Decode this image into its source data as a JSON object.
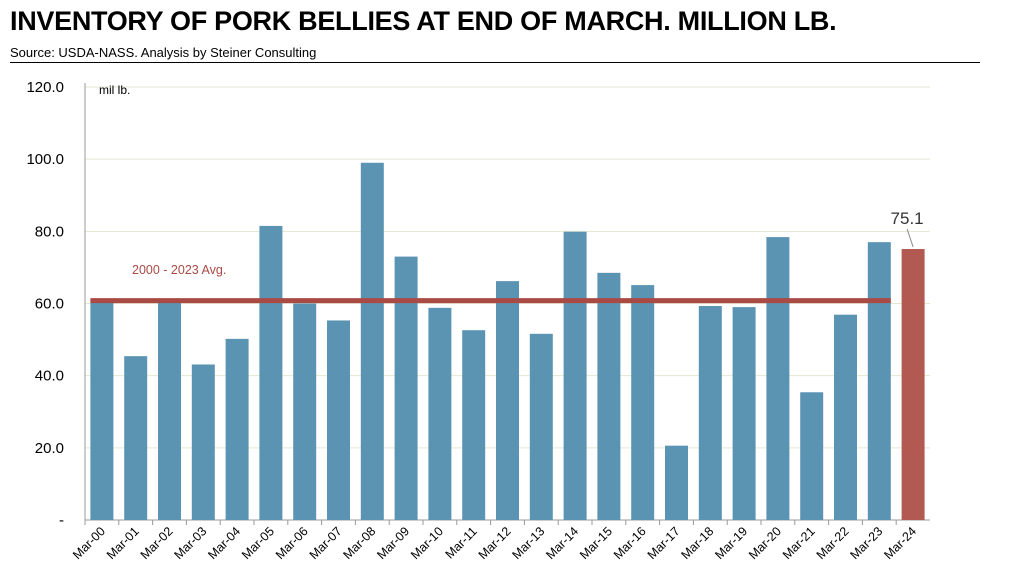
{
  "title": "INVENTORY OF PORK BELLIES AT END OF MARCH. MILLION LB.",
  "subtitle": "Source:  USDA-NASS.  Analysis by Steiner Consulting",
  "chart_data": {
    "type": "bar",
    "title": "INVENTORY OF PORK BELLIES AT END OF MARCH. MILLION LB.",
    "ylabel": "mil lb.",
    "xlabel": "",
    "ylim": [
      0,
      120
    ],
    "yticks": [
      0,
      20,
      40,
      60,
      80,
      100,
      120
    ],
    "ytick_labels": [
      "-",
      "20.0",
      "40.0",
      "60.0",
      "80.0",
      "100.0",
      "120.0"
    ],
    "grid": true,
    "categories": [
      "Mar-00",
      "Mar-01",
      "Mar-02",
      "Mar-03",
      "Mar-04",
      "Mar-05",
      "Mar-06",
      "Mar-07",
      "Mar-08",
      "Mar-09",
      "Mar-10",
      "Mar-11",
      "Mar-12",
      "Mar-13",
      "Mar-14",
      "Mar-15",
      "Mar-16",
      "Mar-17",
      "Mar-18",
      "Mar-19",
      "Mar-20",
      "Mar-21",
      "Mar-22",
      "Mar-23",
      "Mar-24"
    ],
    "values": [
      60.6,
      45.4,
      60.2,
      43.1,
      50.2,
      81.5,
      60.0,
      55.3,
      99.0,
      73.0,
      58.8,
      52.6,
      66.2,
      51.6,
      79.9,
      68.5,
      65.1,
      20.6,
      59.3,
      59.0,
      78.4,
      35.4,
      56.9,
      77.0,
      75.1
    ],
    "bar_color": "#5b93b3",
    "highlight_color": "#b25a52",
    "highlight_index": 24,
    "highlight_label": "75.1",
    "average": {
      "label": "2000 - 2023 Avg.",
      "value": 60.8,
      "color": "#a94a45"
    }
  }
}
